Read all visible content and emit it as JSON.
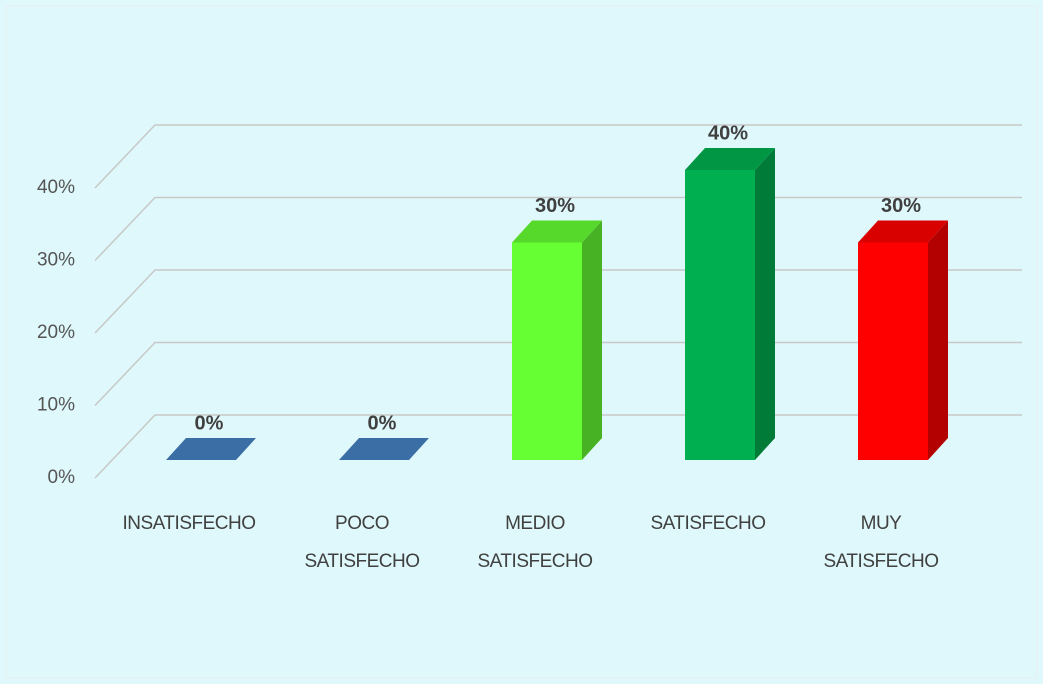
{
  "chart_data": {
    "type": "bar3d",
    "categories": [
      "INSATISFECHO",
      "POCO\nSATISFECHO",
      "MEDIO\nSATISFECHO",
      "SATISFECHO",
      "MUY\nSATISFECHO"
    ],
    "values": [
      0,
      0,
      30,
      40,
      30
    ],
    "value_labels": [
      "0%",
      "0%",
      "30%",
      "40%",
      "30%"
    ],
    "colors": [
      "#3a6ea5",
      "#3a6ea5",
      "#66ff33",
      "#00b050",
      "#ff0000"
    ],
    "ylim": [
      0,
      40
    ],
    "yticks": [
      {
        "value": 0,
        "label": "0%"
      },
      {
        "value": 10,
        "label": "10%"
      },
      {
        "value": 20,
        "label": "20%"
      },
      {
        "value": 30,
        "label": "30%"
      },
      {
        "value": 40,
        "label": "40%"
      }
    ],
    "grid": true
  }
}
